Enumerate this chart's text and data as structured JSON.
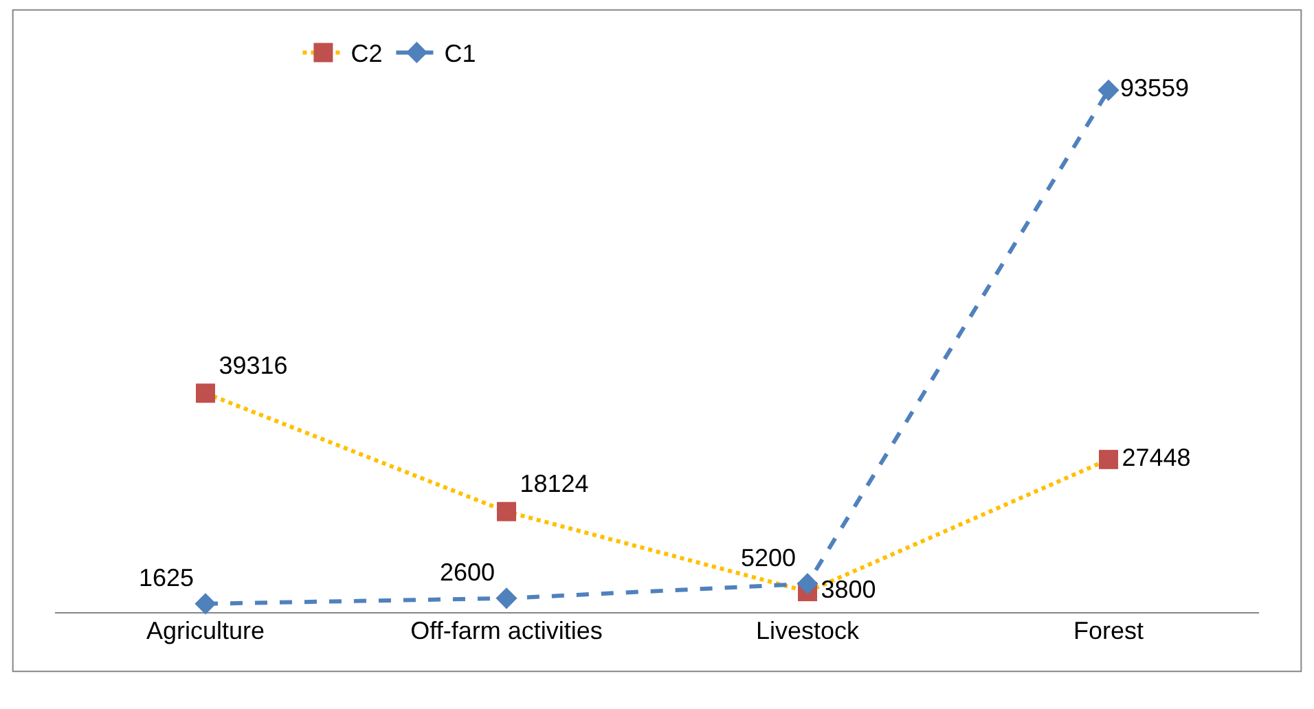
{
  "chart_data": {
    "type": "line",
    "categories": [
      "Agriculture",
      "Off-farm activities",
      "Livestock",
      "Forest"
    ],
    "series": [
      {
        "name": "C2",
        "color": "#ffc000",
        "colors": [
          "#c0504d",
          "#c0504d",
          "#c0504d",
          "#c0504d"
        ],
        "marker": "square",
        "line_style": "dotted",
        "values": [
          39316,
          18124,
          3800,
          27448
        ]
      },
      {
        "name": "C1",
        "color": "#4f81bd",
        "colors": [
          "#4f81bd",
          "#4f81bd",
          "#4f81bd",
          "#4f81bd"
        ],
        "marker": "diamond",
        "line_style": "dashed",
        "values": [
          1625,
          2600,
          5200,
          93559
        ]
      }
    ],
    "data_labels": true,
    "legend": "top left"
  }
}
